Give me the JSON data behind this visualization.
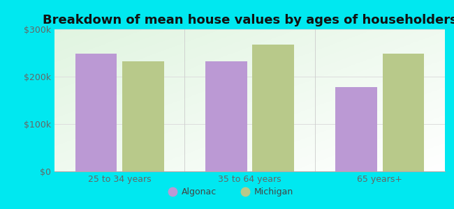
{
  "title": "Breakdown of mean house values by ages of householders",
  "categories": [
    "25 to 34 years",
    "35 to 64 years",
    "65 years+"
  ],
  "algonac_values": [
    248000,
    232000,
    178000
  ],
  "michigan_values": [
    232000,
    268000,
    248000
  ],
  "ylim": [
    0,
    300000
  ],
  "yticks": [
    0,
    100000,
    200000,
    300000
  ],
  "ytick_labels": [
    "$0",
    "$100k",
    "$200k",
    "$300k"
  ],
  "algonac_color": "#bb99d4",
  "michigan_color": "#b8c98a",
  "background_outer": "#00e8f0",
  "bar_width": 0.32,
  "legend_algonac": "Algonac",
  "legend_michigan": "Michigan",
  "title_fontsize": 13,
  "tick_fontsize": 9,
  "legend_fontsize": 9,
  "grid_color": "#dddddd",
  "tick_color": "#666666"
}
